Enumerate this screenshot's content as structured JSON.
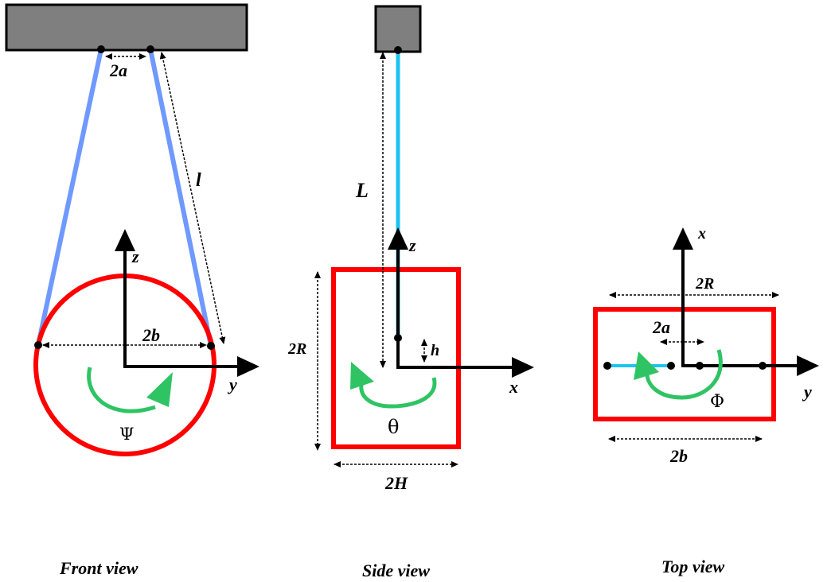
{
  "front": {
    "label_2a": "2a",
    "label_l": "l",
    "label_z": "z",
    "label_2b": "2b",
    "label_y": "y",
    "label_angle": "Ψ",
    "caption": "Front view"
  },
  "side": {
    "label_L": "L",
    "label_z": "z",
    "label_2R": "2R",
    "label_h": "h",
    "label_x": "x",
    "label_angle": "θ",
    "label_2H": "2H",
    "caption": "Side view"
  },
  "top": {
    "label_x": "x",
    "label_2R": "2R",
    "label_2a": "2a",
    "label_y": "y",
    "label_angle": "Φ",
    "label_2b": "2b",
    "caption": "Top view"
  },
  "colors": {
    "ceiling": "#7f7f7f",
    "wire_front": "#6f99ff",
    "wire_side": "#1ec3f0",
    "body": "#ff0000",
    "rotation_arrow": "#2fc463",
    "axis": "#000000"
  }
}
